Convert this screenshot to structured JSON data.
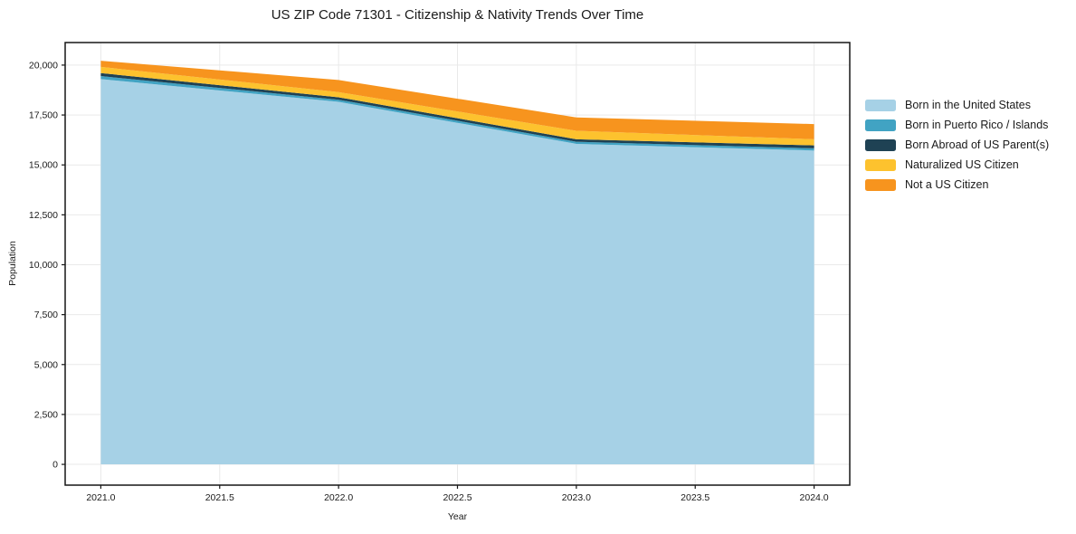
{
  "title": "US ZIP Code 71301 - Citizenship & Nativity Trends Over Time",
  "axes": {
    "x": {
      "label": "Year",
      "tick_values": [
        2021.0,
        2021.5,
        2022.0,
        2022.5,
        2023.0,
        2023.5,
        2024.0
      ],
      "tick_labels": [
        "2021.0",
        "2021.5",
        "2022.0",
        "2022.5",
        "2023.0",
        "2023.5",
        "2024.0"
      ]
    },
    "y": {
      "label": "Population",
      "tick_values": [
        0,
        2500,
        5000,
        7500,
        10000,
        12500,
        15000,
        17500,
        20000
      ],
      "tick_labels": [
        "0",
        "2,500",
        "5,000",
        "7,500",
        "10,000",
        "12,500",
        "15,000",
        "17,500",
        "20,000"
      ]
    }
  },
  "colors": {
    "background": "#ffffff",
    "grid": "#e9e9e9",
    "spine": "#161616",
    "tick": "#161616",
    "text": "#1a1a1a"
  },
  "chart_data": {
    "type": "area",
    "stacked": true,
    "title": "US ZIP Code 71301 - Citizenship & Nativity Trends Over Time",
    "xlabel": "Year",
    "ylabel": "Population",
    "x": [
      2021,
      2022,
      2023,
      2024
    ],
    "series": [
      {
        "name": "Born in the United States",
        "color": "#a6d1e6",
        "values": [
          19300,
          18160,
          16055,
          15720
        ]
      },
      {
        "name": "Born in Puerto Rico / Islands",
        "color": "#41a3c3",
        "values": [
          150,
          105,
          105,
          110
        ]
      },
      {
        "name": "Born Abroad of US Parent(s)",
        "color": "#1f4254",
        "values": [
          150,
          125,
          125,
          150
        ]
      },
      {
        "name": "Naturalized US Citizen",
        "color": "#fdc22e",
        "values": [
          310,
          255,
          425,
          305
        ]
      },
      {
        "name": "Not a US Citizen",
        "color": "#f7941e",
        "values": [
          305,
          610,
          670,
          760
        ]
      }
    ],
    "stack_totals": [
      20215,
      19255,
      17380,
      17045
    ],
    "xlim": [
      2020.85,
      2024.15
    ],
    "ylim": [
      -1040,
      21130
    ],
    "grid": true,
    "legend_position": "right-top, frameless"
  }
}
